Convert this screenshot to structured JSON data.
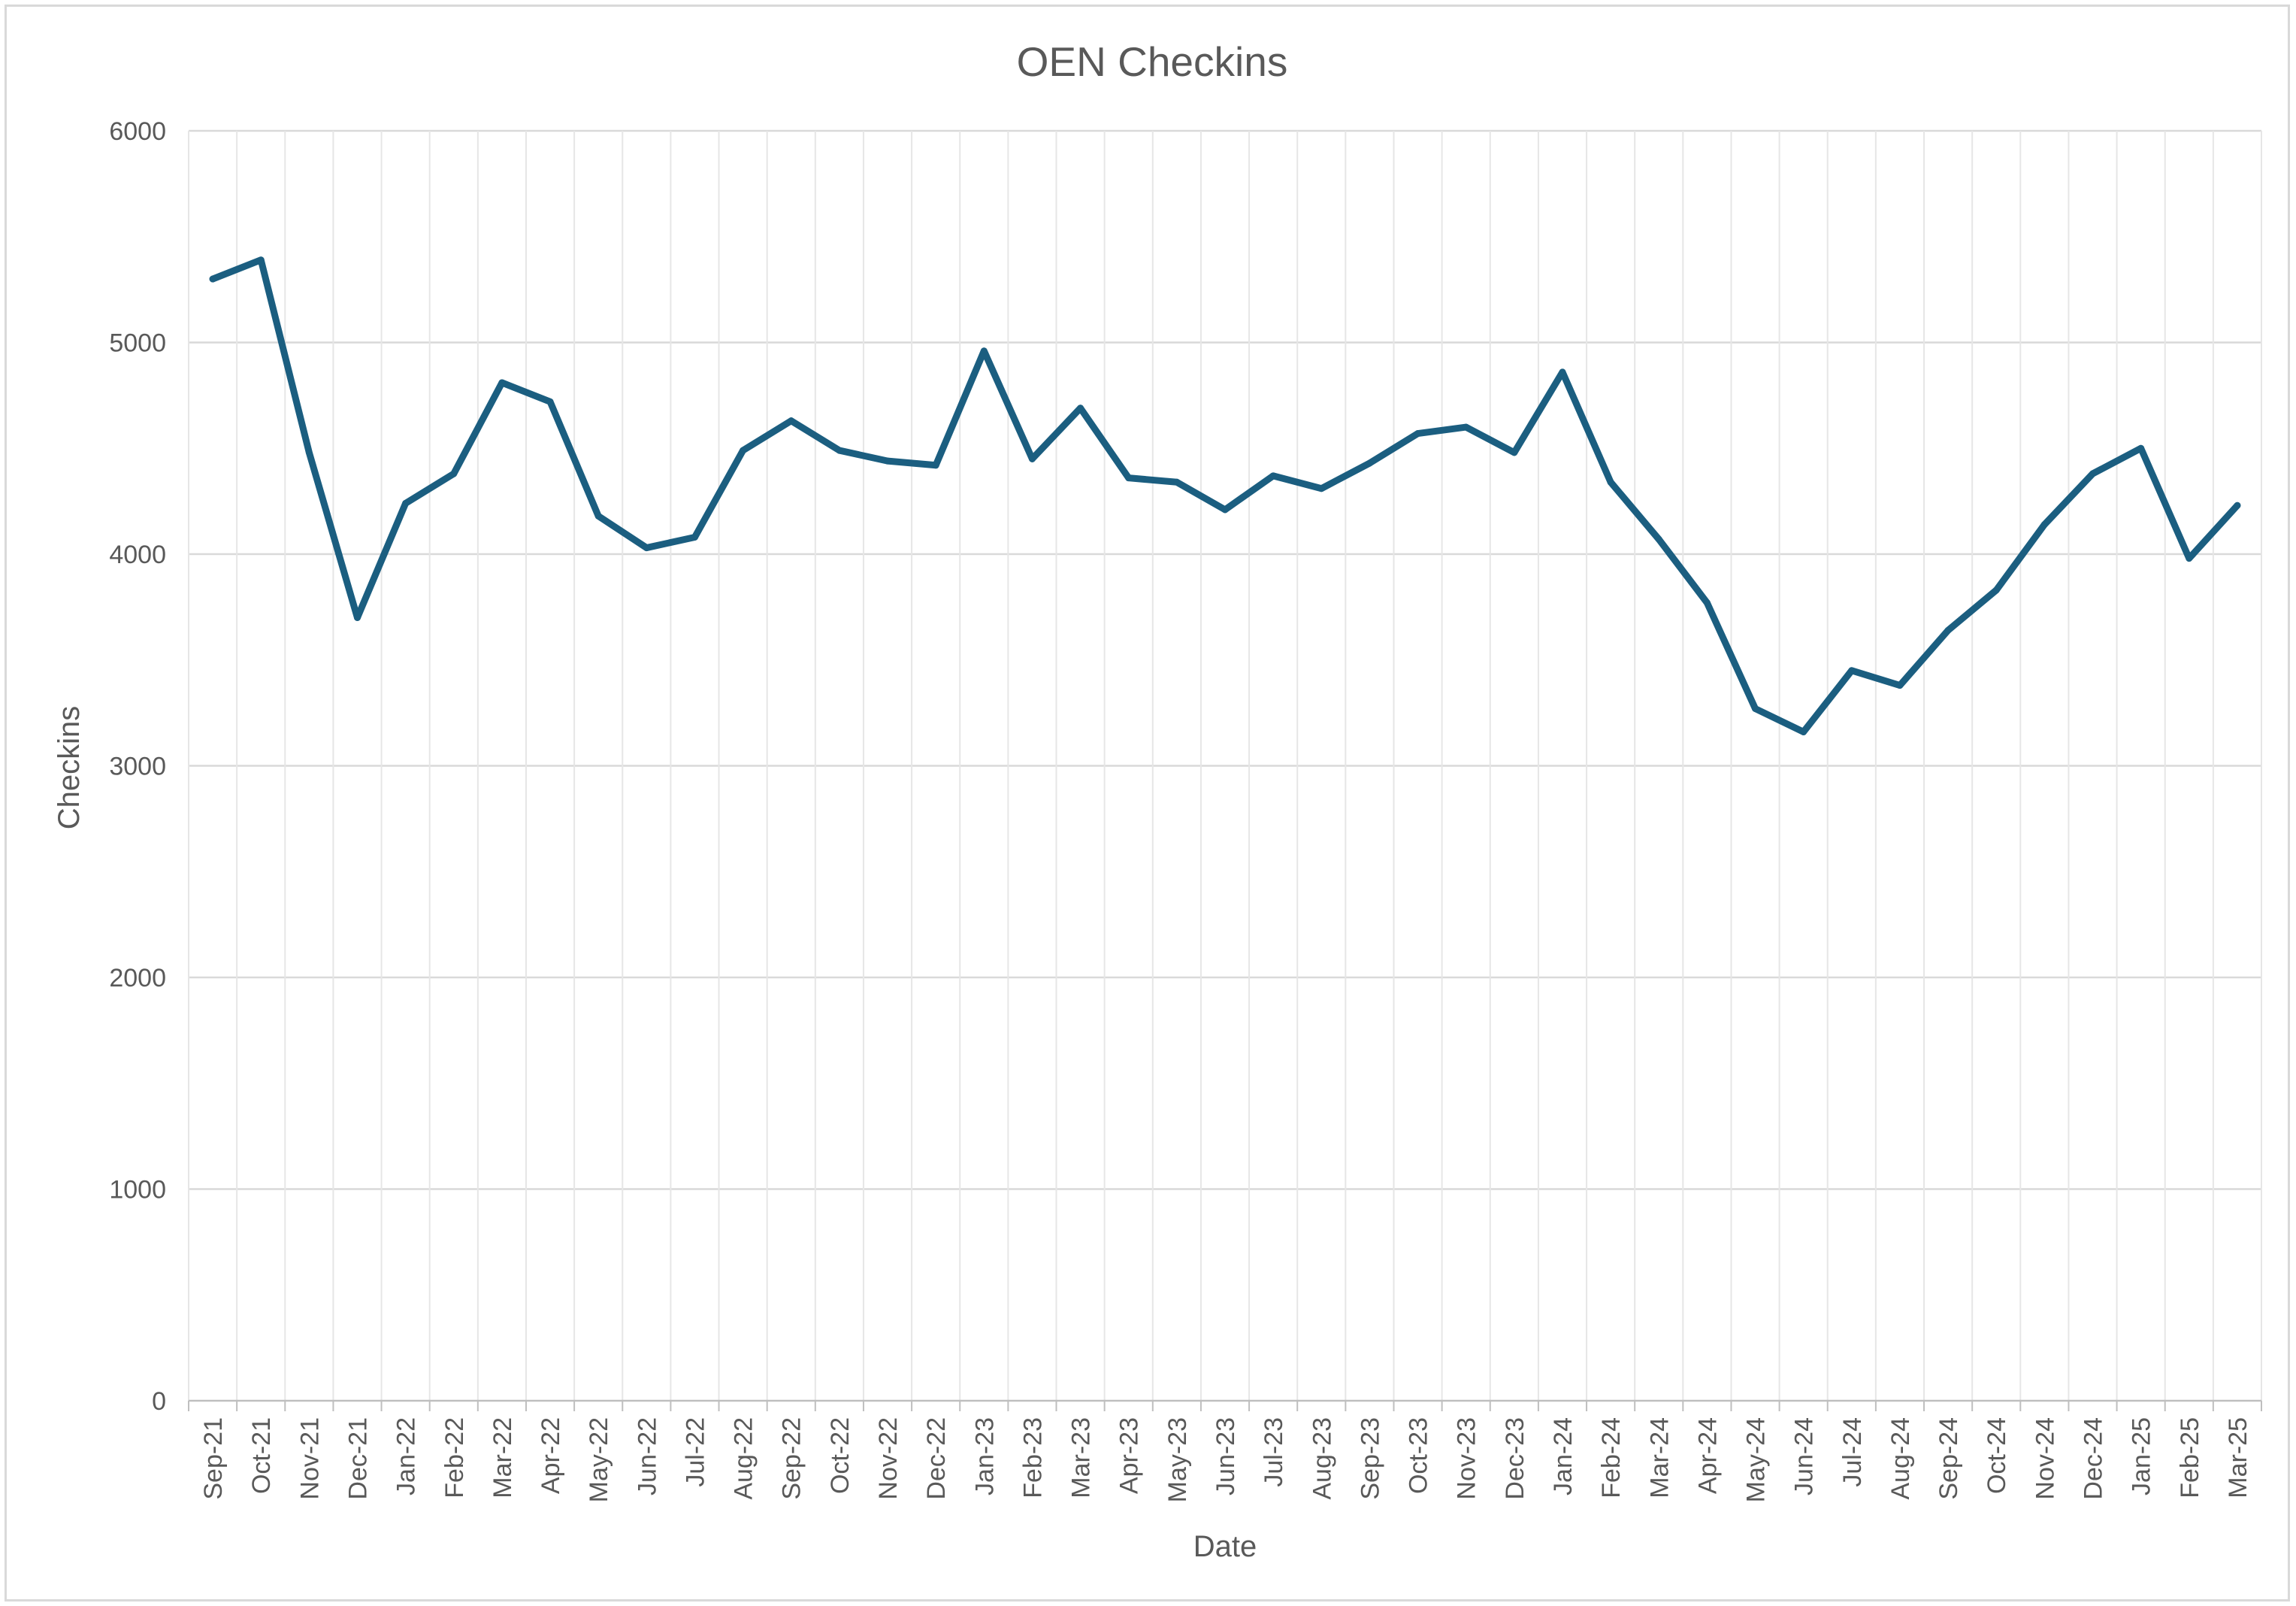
{
  "chart_data": {
    "type": "line",
    "title": "OEN Checkins",
    "xlabel": "Date",
    "ylabel": "Checkins",
    "ylim": [
      0,
      6000
    ],
    "yticks": [
      0,
      1000,
      2000,
      3000,
      4000,
      5000,
      6000
    ],
    "grid": true,
    "legend": "none",
    "line_color": "#1b5e80",
    "categories": [
      "Sep-21",
      "Oct-21",
      "Nov-21",
      "Dec-21",
      "Jan-22",
      "Feb-22",
      "Mar-22",
      "Apr-22",
      "May-22",
      "Jun-22",
      "Jul-22",
      "Aug-22",
      "Sep-22",
      "Oct-22",
      "Nov-22",
      "Dec-22",
      "Jan-23",
      "Feb-23",
      "Mar-23",
      "Apr-23",
      "May-23",
      "Jun-23",
      "Jul-23",
      "Aug-23",
      "Sep-23",
      "Oct-23",
      "Nov-23",
      "Dec-23",
      "Jan-24",
      "Feb-24",
      "Mar-24",
      "Apr-24",
      "May-24",
      "Jun-24",
      "Jul-24",
      "Aug-24",
      "Sep-24",
      "Oct-24",
      "Nov-24",
      "Dec-24",
      "Jan-25",
      "Feb-25",
      "Mar-25"
    ],
    "series": [
      {
        "values": [
          5300,
          5390,
          4480,
          3700,
          4240,
          4380,
          4810,
          4720,
          4180,
          4030,
          4080,
          4490,
          4630,
          4490,
          4440,
          4420,
          4960,
          4450,
          4690,
          4360,
          4340,
          4210,
          4370,
          4310,
          4430,
          4570,
          4600,
          4480,
          4860,
          4340,
          4070,
          3770,
          3270,
          3160,
          3450,
          3380,
          3640,
          3830,
          4140,
          4380,
          4500,
          3980,
          4230
        ]
      }
    ]
  }
}
